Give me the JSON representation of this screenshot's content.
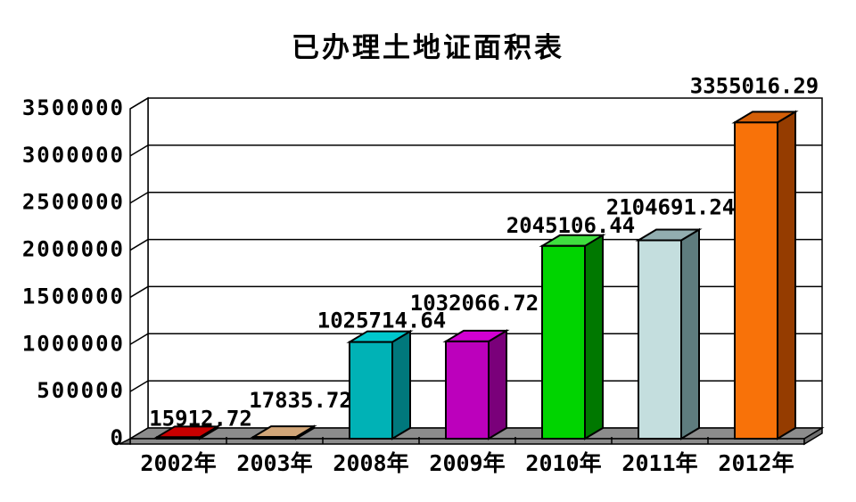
{
  "chart_data": {
    "type": "bar",
    "style": "3d-column",
    "title": "已办理土地证面积表",
    "categories": [
      "2002年",
      "2003年",
      "2008年",
      "2009年",
      "2010年",
      "2011年",
      "2012年"
    ],
    "values": [
      15912.72,
      17835.72,
      1025714.64,
      1032066.72,
      2045106.44,
      2104691.24,
      3355016.29
    ],
    "value_labels": [
      "15912.72",
      "17835.72",
      "1025714.64",
      "1032066.72",
      "2045106.44",
      "2104691.24",
      "3355016.29"
    ],
    "xlabel": "",
    "ylabel": "",
    "ylim": [
      0,
      3500000
    ],
    "ytick_step": 500000,
    "yticks": [
      "0",
      "500000",
      "1000000",
      "1500000",
      "2000000",
      "2500000",
      "3000000",
      "3500000"
    ],
    "grid": true,
    "legend": false,
    "colors": {
      "background": "#FFFFFF",
      "wall": "#FFFFFF",
      "outline": "#000000",
      "text": "#000000",
      "floor_top": "#8C8C8C",
      "floor_side": "#6E6E6E",
      "series": [
        {
          "category": "2002年",
          "front": "#A80000",
          "top": "#C80000",
          "side": "#780000"
        },
        {
          "category": "2003年",
          "front": "#C49463",
          "top": "#D2A678",
          "side": "#96683C"
        },
        {
          "category": "2008年",
          "front": "#00B2B6",
          "top": "#00C8CC",
          "side": "#00787C"
        },
        {
          "category": "2009年",
          "front": "#BC00BC",
          "top": "#D200D2",
          "side": "#7A007A"
        },
        {
          "category": "2010年",
          "front": "#00D400",
          "top": "#3FDF3F",
          "side": "#007800"
        },
        {
          "category": "2011年",
          "front": "#C4DEDE",
          "top": "#92AEB0",
          "side": "#5E7C7E"
        },
        {
          "category": "2012年",
          "front": "#F87209",
          "top": "#D45F08",
          "side": "#953C00"
        }
      ]
    }
  }
}
